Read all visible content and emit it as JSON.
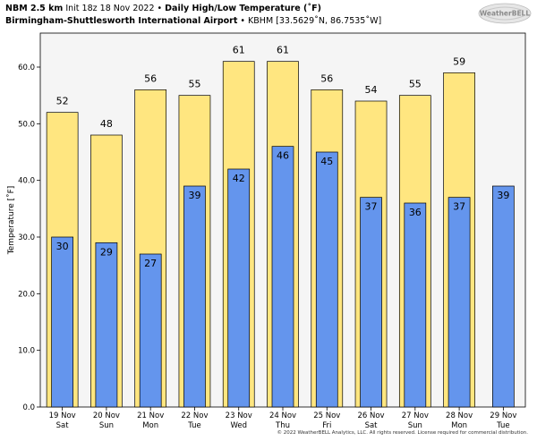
{
  "header": {
    "model": "NBM 2.5 km",
    "init": "Init 18z 18 Nov 2022",
    "bullet": "•",
    "title": "Daily High/Low Temperature (˚F)",
    "station": "Birmingham-Shuttlesworth International Airport",
    "station_info": "KBHM [33.5629˚N, 86.7535˚W]"
  },
  "logo": {
    "text": "WeatherBELL"
  },
  "footer": {
    "text": "© 2022 WeatherBELL Analytics, LLC. All rights reserved. License required for commercial distribution."
  },
  "colors": {
    "high": "#FFE680",
    "low": "#6495ED",
    "plot_bg": "#F5F5F5",
    "edge": "#000000"
  },
  "chart_data": {
    "type": "bar",
    "title": "Daily High/Low Temperature (˚F)",
    "ylabel": "Temperature [˚F]",
    "ylim": [
      0,
      66
    ],
    "yticks": [
      "0.0",
      "10.0",
      "20.0",
      "30.0",
      "40.0",
      "50.0",
      "60.0"
    ],
    "grid": false,
    "categories": [
      [
        "19 Nov",
        "Sat"
      ],
      [
        "20 Nov",
        "Sun"
      ],
      [
        "21 Nov",
        "Mon"
      ],
      [
        "22 Nov",
        "Tue"
      ],
      [
        "23 Nov",
        "Wed"
      ],
      [
        "24 Nov",
        "Thu"
      ],
      [
        "25 Nov",
        "Fri"
      ],
      [
        "26 Nov",
        "Sat"
      ],
      [
        "27 Nov",
        "Sun"
      ],
      [
        "28 Nov",
        "Mon"
      ],
      [
        "29 Nov",
        "Tue"
      ]
    ],
    "series": [
      {
        "values": [
          52,
          48,
          56,
          55,
          61,
          61,
          56,
          54,
          55,
          59,
          null
        ],
        "labels": [
          "52",
          "48",
          "56",
          "55",
          "61",
          "61",
          "56",
          "54",
          "55",
          "59",
          ""
        ]
      },
      {
        "values": [
          30,
          29,
          27,
          39,
          42,
          46,
          45,
          37,
          36,
          37,
          39
        ],
        "labels": [
          "30",
          "29",
          "27",
          "39",
          "42",
          "46",
          "45",
          "37",
          "36",
          "37",
          "39"
        ]
      }
    ]
  }
}
